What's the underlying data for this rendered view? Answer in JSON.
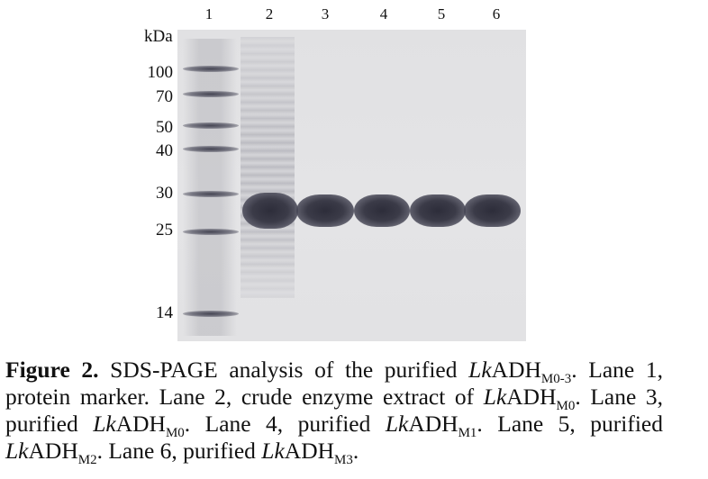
{
  "lane_numbers": [
    "1",
    "2",
    "3",
    "4",
    "5",
    "6"
  ],
  "unit_label": "kDa",
  "marker_sizes": [
    "100",
    "70",
    "50",
    "40",
    "30",
    "25",
    "14"
  ],
  "caption": {
    "fig_label": "Figure 2.",
    "t1": " SDS-PAGE analysis of the purified ",
    "lk": "Lk",
    "adh": "ADH",
    "sub_m03": "M0-3",
    "t2": ". Lane 1, protein marker. Lane 2, crude enzyme extract of ",
    "sub_m0": "M0",
    "t3": ". Lane 3, purified ",
    "t4": ". Lane 4, purified ",
    "sub_m1": "M1",
    "t5": ". Lane 5, purified ",
    "sub_m2": "M2",
    "t6": ". Lane 6, purified ",
    "sub_m3": "M3",
    "t7": "."
  }
}
